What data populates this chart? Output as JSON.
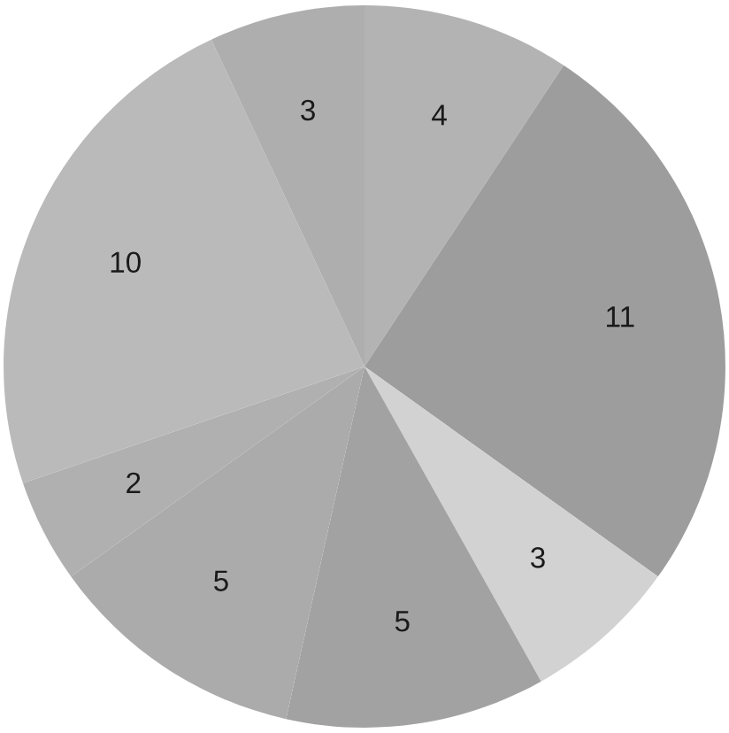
{
  "chart_data": {
    "type": "pie",
    "categories": [
      null,
      null,
      null,
      null,
      null,
      null,
      null,
      null
    ],
    "values": [
      4,
      11,
      3,
      5,
      5,
      2,
      10,
      3
    ],
    "colors": [
      "#b3b3b3",
      "#9d9d9d",
      "#d2d2d2",
      "#a2a2a2",
      "#ababab",
      "#b0b0b0",
      "#bababa",
      "#aeaeae"
    ],
    "data_labels": true
  }
}
